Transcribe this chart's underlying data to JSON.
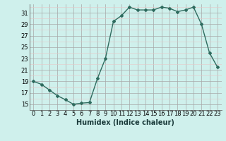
{
  "x": [
    0,
    1,
    2,
    3,
    4,
    5,
    6,
    7,
    8,
    9,
    10,
    11,
    12,
    13,
    14,
    15,
    16,
    17,
    18,
    19,
    20,
    21,
    22,
    23
  ],
  "y": [
    19,
    18.5,
    17.5,
    16.5,
    15.8,
    15.0,
    15.2,
    15.3,
    19.5,
    23.0,
    29.5,
    30.5,
    32.0,
    31.5,
    31.5,
    31.5,
    32.0,
    31.8,
    31.2,
    31.5,
    32.0,
    29.0,
    24.0,
    21.5
  ],
  "line_color": "#2e6b5e",
  "marker": "D",
  "marker_size": 2.0,
  "xlabel": "Humidex (Indice chaleur)",
  "xlim": [
    -0.5,
    23.5
  ],
  "ylim": [
    14.0,
    32.5
  ],
  "yticks": [
    15,
    17,
    19,
    21,
    23,
    25,
    27,
    29,
    31
  ],
  "xticks": [
    0,
    1,
    2,
    3,
    4,
    5,
    6,
    7,
    8,
    9,
    10,
    11,
    12,
    13,
    14,
    15,
    16,
    17,
    18,
    19,
    20,
    21,
    22,
    23
  ],
  "xtick_labels": [
    "0",
    "1",
    "2",
    "3",
    "4",
    "5",
    "6",
    "7",
    "8",
    "9",
    "10",
    "11",
    "12",
    "13",
    "14",
    "15",
    "16",
    "17",
    "18",
    "19",
    "20",
    "21",
    "22",
    "23"
  ],
  "bg_color": "#cff0ec",
  "grid_major_color": "#a8a8a8",
  "grid_minor_color": "#e8c8c8",
  "xlabel_fontsize": 7,
  "tick_fontsize": 6,
  "linewidth": 1.0
}
